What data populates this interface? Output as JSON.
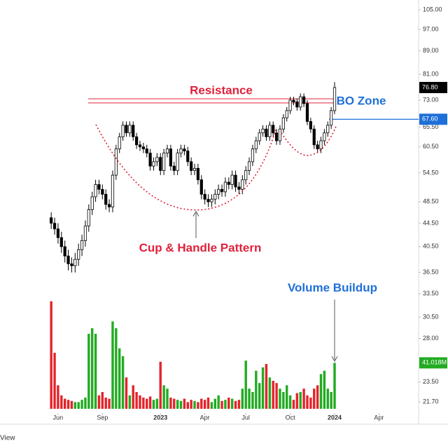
{
  "chart_data": {
    "type": "candlestick",
    "log_scale": true,
    "open": [
      45.5,
      44.5,
      43.5,
      42,
      40.5,
      39,
      37.8,
      37.5,
      38.5,
      40,
      41.5,
      44,
      47,
      49.5,
      52,
      51,
      50,
      48,
      47.5,
      54,
      60,
      63,
      66,
      64,
      66,
      63,
      61,
      60.5,
      60,
      59,
      56,
      57,
      58,
      55,
      59,
      60,
      56,
      55,
      59,
      60,
      59.5,
      57,
      55,
      55.5,
      53,
      50,
      49,
      48.5,
      49,
      50,
      51,
      50.5,
      52.5,
      52,
      54,
      51.5,
      51,
      53,
      55,
      57,
      60,
      62,
      64,
      65,
      63,
      66,
      64,
      62,
      65,
      68,
      70,
      73,
      72.5,
      71,
      74,
      72,
      67,
      65,
      61,
      60,
      62,
      64,
      66,
      70
    ],
    "high": [
      46.5,
      45.5,
      44.5,
      43,
      41.5,
      40,
      38.8,
      39.5,
      41,
      42.5,
      45,
      48,
      50.5,
      53,
      53,
      52,
      51,
      49,
      55,
      61,
      64,
      67,
      67,
      67,
      67,
      64,
      62,
      61.5,
      61,
      60,
      58,
      59,
      59,
      60,
      61,
      61,
      57,
      60,
      61,
      61,
      60.5,
      58,
      56.5,
      56.5,
      54,
      51,
      50,
      50,
      51,
      52,
      52,
      53.5,
      53.5,
      55,
      55,
      52.5,
      54,
      56,
      58,
      61,
      63,
      65,
      66,
      66,
      67,
      67,
      65,
      66,
      69,
      71,
      74,
      74,
      73.5,
      75,
      75,
      73,
      68,
      66,
      62,
      63,
      65,
      67,
      71,
      78.5
    ],
    "low": [
      43.5,
      42.5,
      41,
      39.5,
      38,
      36.8,
      36.5,
      36.5,
      37.5,
      39,
      40.5,
      43,
      46,
      48.5,
      50,
      49,
      47,
      46.5,
      46.5,
      53,
      59,
      62,
      63,
      63,
      62,
      60,
      59.5,
      59,
      58,
      55,
      55,
      56,
      54,
      54,
      58,
      55,
      54,
      54,
      58,
      58.5,
      56,
      54,
      54,
      52,
      49,
      48,
      47.5,
      47.5,
      48,
      49,
      49.5,
      49.5,
      51,
      51,
      50.5,
      50,
      50,
      52,
      54,
      56,
      59,
      61,
      63,
      62,
      62,
      63,
      61,
      61,
      64,
      67,
      69,
      71.5,
      70,
      70,
      71,
      66,
      64,
      60,
      59,
      59,
      61,
      63,
      65,
      69
    ],
    "close": [
      44.5,
      43.5,
      42,
      40.5,
      39,
      37.8,
      37.5,
      38.5,
      40,
      41.5,
      44,
      47,
      49.5,
      52,
      51,
      50,
      48,
      47.5,
      54,
      60,
      63,
      66,
      64,
      66,
      63,
      61,
      60.5,
      60,
      59,
      56,
      57,
      58,
      55,
      59,
      60,
      56,
      55,
      59,
      60,
      59.5,
      57,
      55,
      55.5,
      53,
      50,
      49,
      48.5,
      49,
      50,
      51,
      50.5,
      52.5,
      52,
      54,
      51.5,
      51,
      53,
      55,
      57,
      60,
      62,
      64,
      65,
      63,
      66,
      64,
      62,
      65,
      68,
      70,
      73,
      72.5,
      71,
      74,
      72,
      67,
      65,
      61,
      60,
      62,
      64,
      66,
      70,
      76.8
    ],
    "volume": [
      96,
      50,
      21,
      12,
      9,
      8,
      7,
      6,
      6,
      8,
      10,
      67,
      72,
      67,
      12,
      15,
      10,
      9,
      78,
      72,
      54,
      47,
      28,
      12,
      21,
      15,
      12,
      10,
      9,
      11,
      8,
      9,
      42,
      21,
      18,
      10,
      9,
      8,
      7,
      9,
      6,
      8,
      7,
      6,
      9,
      8,
      10,
      6,
      9,
      12,
      7,
      8,
      10,
      9,
      7,
      8,
      18,
      43,
      18,
      15,
      34,
      23,
      37,
      40,
      28,
      25,
      23,
      18,
      15,
      21,
      12,
      8,
      14,
      15,
      18,
      12,
      10,
      18,
      21,
      31,
      34,
      18,
      15,
      41.018
    ],
    "volume_last_label": "41.018M",
    "last_close_label": "76.80",
    "breakout": {
      "value": 67.6,
      "label": "67.60"
    },
    "resistance": [
      73.4,
      72.2
    ],
    "up_color": "#ffffff",
    "down_color": "#000000",
    "volume_up_color": "#22ab22",
    "volume_down_color": "#e3242b",
    "ylim": [
      21.1,
      109.2
    ],
    "volume_lim": [
      0,
      100
    ],
    "xlim": [
      -15,
      107.6
    ],
    "yticks": [
      {
        "value": 105,
        "label": "105.00"
      },
      {
        "value": 97,
        "label": "97.00"
      },
      {
        "value": 89,
        "label": "89.00"
      },
      {
        "value": 81,
        "label": "81.00"
      },
      {
        "value": 73,
        "label": "73.00"
      },
      {
        "value": 65.5,
        "label": "65.50"
      },
      {
        "value": 60.5,
        "label": "60.50"
      },
      {
        "value": 54.5,
        "label": "54.50"
      },
      {
        "value": 48.5,
        "label": "48.50"
      },
      {
        "value": 44.5,
        "label": "44.50"
      },
      {
        "value": 40.5,
        "label": "40.50"
      },
      {
        "value": 36.5,
        "label": "36.50"
      },
      {
        "value": 33.5,
        "label": "33.50"
      },
      {
        "value": 30.5,
        "label": "30.50"
      },
      {
        "value": 28,
        "label": "28.00"
      },
      {
        "value": 23.5,
        "label": "23.50"
      },
      {
        "value": 21.7,
        "label": "21.70"
      }
    ],
    "xticks": [
      {
        "value": 2,
        "label": "Jun"
      },
      {
        "value": 15,
        "label": "Sep"
      },
      {
        "value": 32,
        "label": "2023"
      },
      {
        "value": 45,
        "label": "Apr"
      },
      {
        "value": 57,
        "label": "Jul"
      },
      {
        "value": 70,
        "label": "Oct"
      },
      {
        "value": 83,
        "label": "2024"
      },
      {
        "value": 96,
        "label": "Apr"
      }
    ],
    "annotations": {
      "resistance": "Resistance",
      "bo_zone": "BO Zone",
      "pattern": "Cup & Handle Pattern",
      "volume": "Volume Buildup"
    },
    "watermark": "View"
  }
}
